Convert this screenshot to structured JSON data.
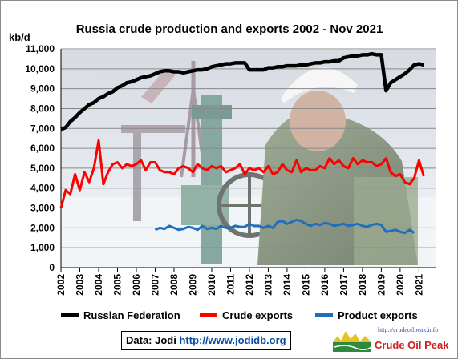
{
  "chart_data": {
    "type": "line",
    "title": "Russia crude production and exports 2002 - Nov 2021",
    "ylabel": "kb/d",
    "ylim": [
      0,
      11000
    ],
    "yticks": [
      0,
      1000,
      2000,
      3000,
      4000,
      5000,
      6000,
      7000,
      8000,
      9000,
      10000,
      11000
    ],
    "ytick_labels": [
      "0",
      "1,000",
      "2,000",
      "3,000",
      "4,000",
      "5,000",
      "6,000",
      "7,000",
      "8,000",
      "9,000",
      "10,000",
      "11,000"
    ],
    "xlim": [
      2002,
      2021.92
    ],
    "xticks": [
      "2002",
      "2003",
      "2004",
      "2005",
      "2006",
      "2007",
      "2008",
      "2009",
      "2010",
      "2011",
      "2012",
      "2013",
      "2014",
      "2015",
      "2016",
      "2017",
      "2018",
      "2019",
      "2020",
      "2021"
    ],
    "grid": true,
    "legend_position": "bottom",
    "series": [
      {
        "name": "Russian Federation",
        "color": "#000000",
        "x_start": "2002-01",
        "x_step": "quarter",
        "values": [
          6950,
          7050,
          7350,
          7550,
          7800,
          8000,
          8200,
          8300,
          8500,
          8600,
          8750,
          8850,
          9050,
          9150,
          9300,
          9350,
          9450,
          9550,
          9600,
          9650,
          9750,
          9850,
          9900,
          9900,
          9850,
          9850,
          9800,
          9850,
          9900,
          9950,
          9950,
          10000,
          10100,
          10150,
          10200,
          10250,
          10250,
          10300,
          10300,
          10300,
          9950,
          9950,
          9950,
          9950,
          10050,
          10050,
          10100,
          10100,
          10150,
          10150,
          10150,
          10200,
          10200,
          10250,
          10300,
          10300,
          10350,
          10350,
          10400,
          10400,
          10550,
          10600,
          10650,
          10650,
          10700,
          10700,
          10750,
          10700,
          10700,
          8900,
          9300,
          9450,
          9600,
          9750,
          9950,
          10200,
          10250,
          10200
        ]
      },
      {
        "name": "Crude exports",
        "color": "#ff0000",
        "x_start": "2002-01",
        "x_step": "quarter",
        "values": [
          3000,
          3900,
          3700,
          4700,
          3900,
          4800,
          4300,
          5000,
          6400,
          4200,
          4800,
          5200,
          5300,
          5000,
          5200,
          5100,
          5200,
          5400,
          4900,
          5300,
          5300,
          4900,
          4800,
          4800,
          4700,
          5000,
          5100,
          5000,
          4800,
          5200,
          5000,
          4900,
          5100,
          5000,
          5100,
          4800,
          4900,
          5000,
          5200,
          4700,
          5000,
          4900,
          5000,
          4800,
          5100,
          4700,
          4800,
          5200,
          4900,
          4800,
          5400,
          4800,
          5000,
          4900,
          4900,
          5100,
          5000,
          5500,
          5200,
          5400,
          5100,
          5000,
          5500,
          5200,
          5400,
          5300,
          5300,
          5100,
          5200,
          5500,
          4800,
          4600,
          4700,
          4300,
          4200,
          4500,
          5400,
          4600
        ]
      },
      {
        "name": "Product exports",
        "color": "#1f6fbf",
        "x_start": "2007-01",
        "x_step": "quarter",
        "values": [
          1900,
          2000,
          1950,
          2100,
          2000,
          1900,
          1950,
          2050,
          2000,
          1900,
          2100,
          1950,
          2000,
          1950,
          2100,
          2000,
          2000,
          2100,
          2050,
          2050,
          2200,
          2100,
          2100,
          2000,
          2100,
          2000,
          2300,
          2350,
          2200,
          2300,
          2400,
          2350,
          2200,
          2100,
          2200,
          2150,
          2250,
          2200,
          2100,
          2150,
          2200,
          2100,
          2150,
          2200,
          2100,
          2050,
          2150,
          2200,
          2150,
          1800,
          1850,
          1900,
          1800,
          1750,
          1900,
          1750
        ]
      }
    ]
  },
  "source": {
    "label": "Data: Jodi",
    "url": "http://www.jodidb.org"
  },
  "logo": {
    "url": "http://crudeoilpeak.info",
    "name": "Crude Oil Peak"
  }
}
